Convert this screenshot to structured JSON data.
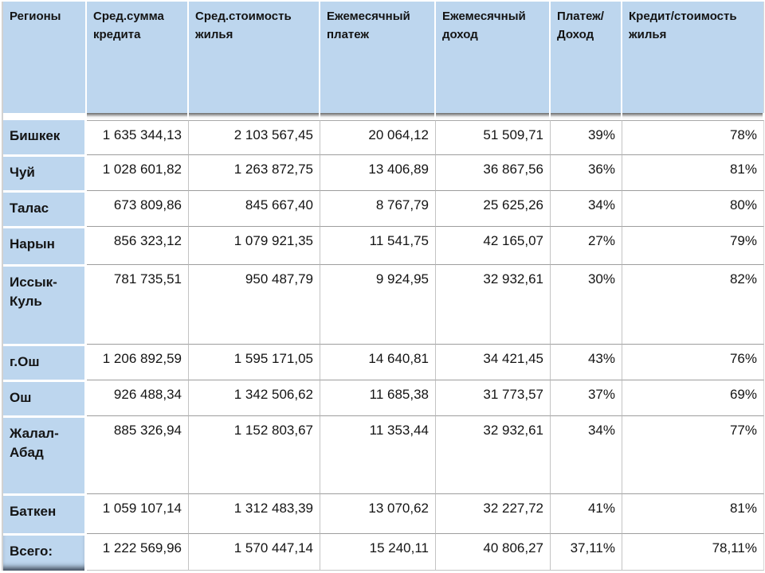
{
  "colors": {
    "header_fill": "#bdd6ee",
    "cell_fill": "#ffffff",
    "grid_line": "#c3c3c3",
    "row_line": "#9d9d9d",
    "shadow": "#6e6e6e",
    "text": "#141414"
  },
  "table": {
    "columns": [
      "Регионы",
      "Сред.сумма\nкредита",
      "Сред.стоимость\nжилья",
      "Ежемесячный\nплатеж",
      "Ежемесячный\nдоход",
      "Платеж/\nДоход",
      "Кредит/стоимость\nжилья"
    ],
    "rows": [
      {
        "region": "Бишкек",
        "values": [
          "1 635 344,13",
          "2 103 567,45",
          "20 064,12",
          "51 509,71",
          "39%",
          "78%"
        ]
      },
      {
        "region": "Чуй",
        "values": [
          "1 028 601,82",
          "1 263 872,75",
          "13 406,89",
          "36 867,56",
          "36%",
          "81%"
        ]
      },
      {
        "region": "Талас",
        "values": [
          "673 809,86",
          "845 667,40",
          "8 767,79",
          "25 625,26",
          "34%",
          "80%"
        ]
      },
      {
        "region": "Нарын",
        "values": [
          "856 323,12",
          "1 079 921,35",
          "11 541,75",
          "42 165,07",
          "27%",
          "79%"
        ]
      },
      {
        "region": "Иссык-\nКуль",
        "values": [
          "781 735,51",
          "950 487,79",
          "9 924,95",
          "32 932,61",
          "30%",
          "82%"
        ]
      },
      {
        "region": "г.Ош",
        "values": [
          "1 206 892,59",
          "1 595 171,05",
          "14 640,81",
          "34 421,45",
          "43%",
          "76%"
        ]
      },
      {
        "region": "Ош",
        "values": [
          "926 488,34",
          "1 342 506,62",
          "11 685,38",
          "31 773,57",
          "37%",
          "69%"
        ]
      },
      {
        "region": "Жалал-\nАбад",
        "values": [
          "885 326,94",
          "1 152 803,67",
          "11 353,44",
          "32 932,61",
          "34%",
          "77%"
        ]
      },
      {
        "region": "Баткен",
        "values": [
          "1 059 107,14",
          "1 312 483,39",
          "13 070,62",
          "32 227,72",
          "41%",
          "81%"
        ]
      },
      {
        "region": "Всего:",
        "values": [
          "1 222 569,96",
          "1 570 447,14",
          "15 240,11",
          "40 806,27",
          "37,11%",
          "78,11%"
        ]
      }
    ]
  }
}
